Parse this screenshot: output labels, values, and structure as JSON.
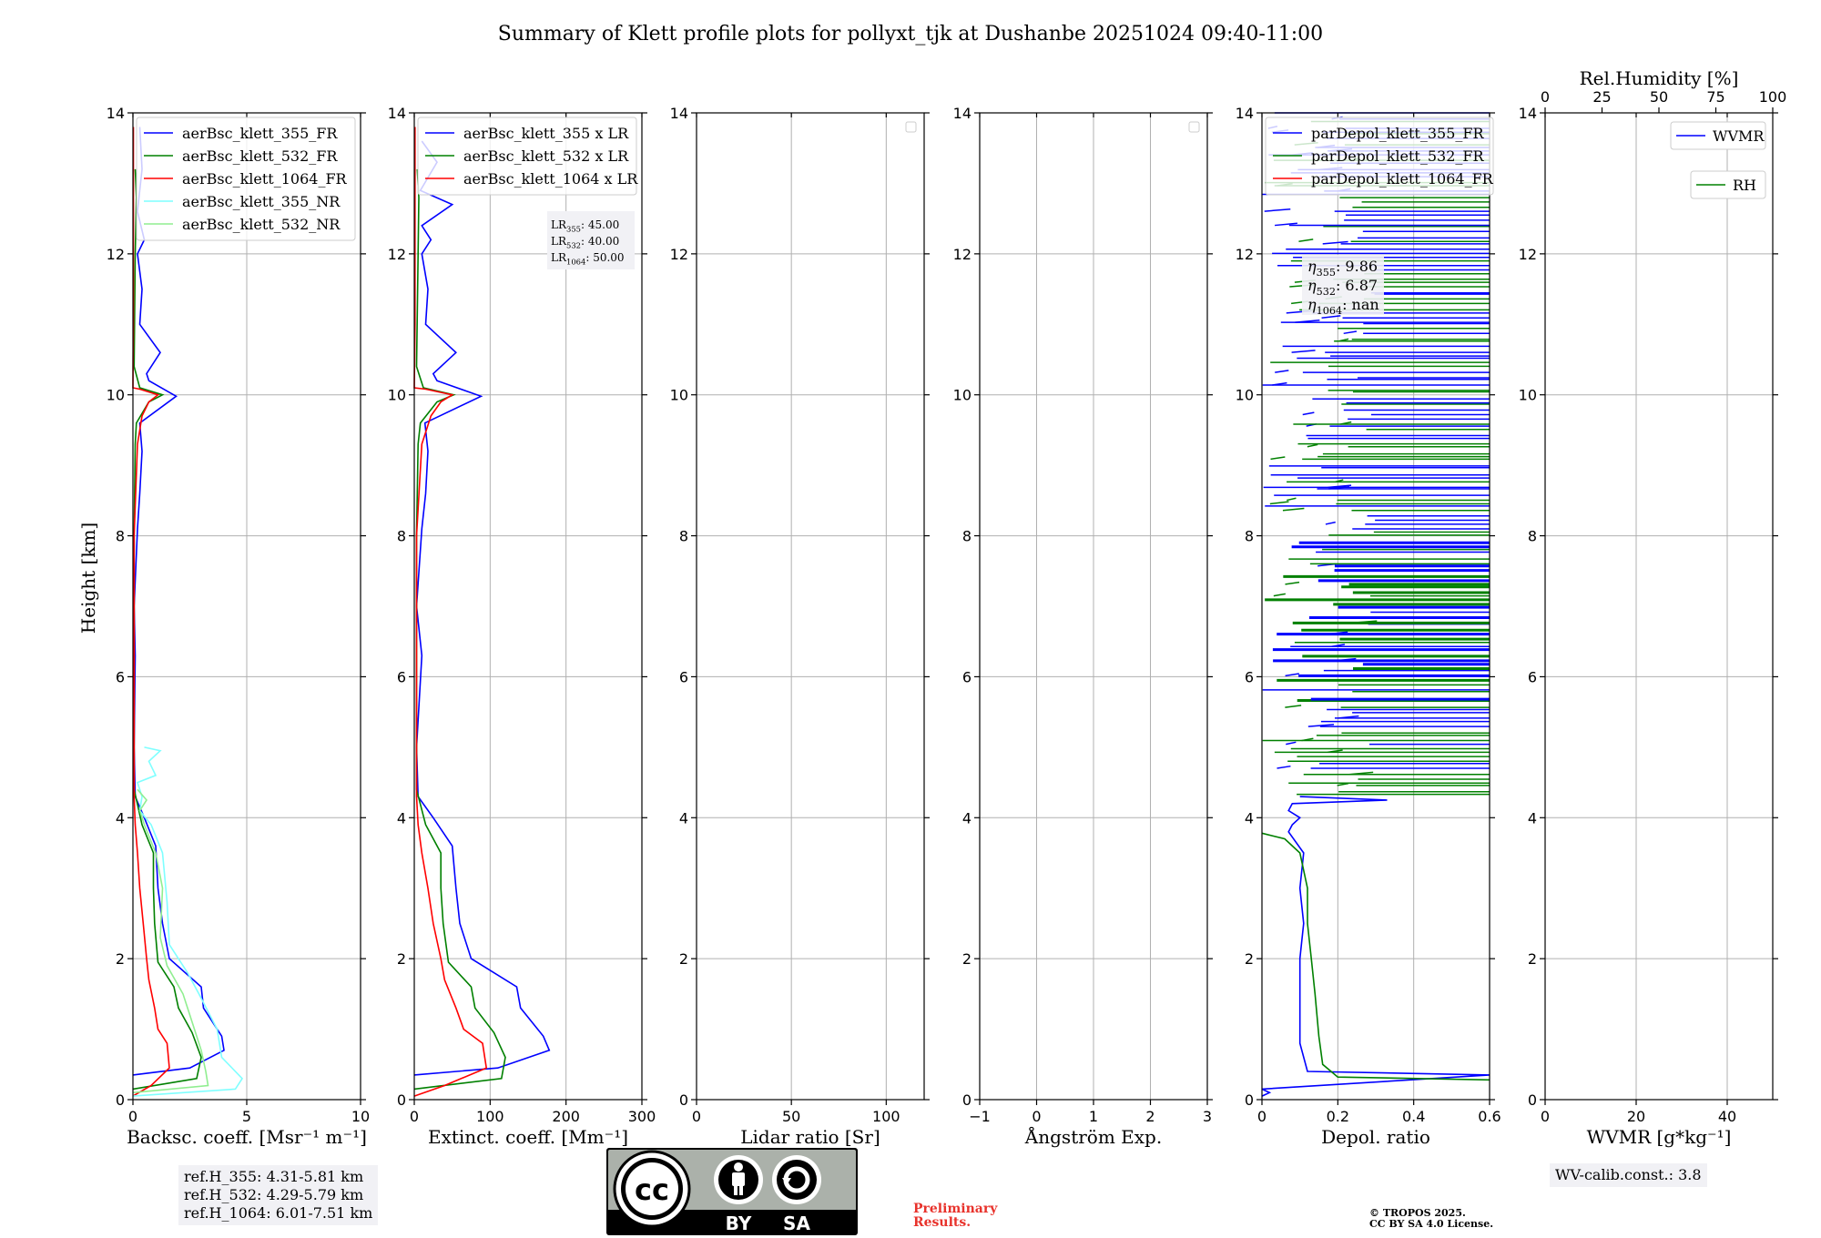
{
  "figure": {
    "title": "Summary of Klett profile plots for pollyxt_tjk at Dushanbe 20251024 09:40-11:00",
    "ylabel": "Height [km]",
    "refh": [
      "ref.H_355: 4.31-5.81 km",
      "ref.H_532: 4.29-5.79 km",
      "ref.H_1064: 6.01-7.51 km"
    ],
    "wv_calib": "WV-calib.const.: 3.8",
    "preliminary": [
      "Preliminary",
      "Results."
    ],
    "copyright": [
      "© TROPOS 2025.",
      "CC BY SA 4.0 License."
    ],
    "cc_badge": {
      "by": "BY",
      "sa": "SA"
    },
    "colors": {
      "blue": "#0000ff",
      "green": "#008000",
      "red": "#ff0000",
      "cyan": "#7fffff",
      "lightgreen": "#90ee90",
      "grid": "#b0b0b0"
    }
  },
  "chart_data": [
    {
      "id": "bsc",
      "type": "line",
      "xlabel": "Backsc. coeff. [Msr⁻¹ m⁻¹]",
      "xlim": [
        0,
        10
      ],
      "ylim": [
        0,
        14
      ],
      "xticks": [
        0,
        5,
        10
      ],
      "yticks": [
        0,
        2,
        4,
        6,
        8,
        10,
        12,
        14
      ],
      "legend": {
        "position": "upper-right",
        "entries": [
          "aerBsc_klett_355_FR",
          "aerBsc_klett_532_FR",
          "aerBsc_klett_1064_FR",
          "aerBsc_klett_355_NR",
          "aerBsc_klett_532_NR"
        ]
      },
      "series": [
        {
          "name": "aerBsc_klett_355_FR",
          "color": "blue",
          "points": [
            [
              0,
              0.35
            ],
            [
              2.5,
              0.45
            ],
            [
              4.0,
              0.7
            ],
            [
              3.9,
              0.9
            ],
            [
              3.1,
              1.3
            ],
            [
              3.0,
              1.6
            ],
            [
              1.6,
              2.0
            ],
            [
              1.3,
              2.5
            ],
            [
              1.1,
              3.0
            ],
            [
              1.0,
              3.6
            ],
            [
              0.5,
              4.0
            ],
            [
              0.1,
              4.3
            ],
            [
              0.05,
              5
            ],
            [
              0.1,
              6.3
            ],
            [
              0.05,
              7
            ],
            [
              0.2,
              8.1
            ],
            [
              0.3,
              8.6
            ],
            [
              0.4,
              9.2
            ],
            [
              0.3,
              9.6
            ],
            [
              1.9,
              9.98
            ],
            [
              0.7,
              10.2
            ],
            [
              0.6,
              10.3
            ],
            [
              1.2,
              10.6
            ],
            [
              0.3,
              11
            ],
            [
              0.4,
              11.5
            ],
            [
              0.2,
              12
            ],
            [
              0.5,
              12.2
            ],
            [
              0.2,
              12.6
            ],
            [
              0.4,
              13.2
            ],
            [
              0.3,
              13.8
            ]
          ]
        },
        {
          "name": "aerBsc_klett_532_FR",
          "color": "green",
          "points": [
            [
              0,
              0.15
            ],
            [
              2.8,
              0.3
            ],
            [
              3.0,
              0.6
            ],
            [
              2.6,
              0.95
            ],
            [
              2.0,
              1.3
            ],
            [
              1.8,
              1.6
            ],
            [
              1.1,
              1.95
            ],
            [
              0.95,
              2.5
            ],
            [
              0.9,
              3.0
            ],
            [
              0.9,
              3.5
            ],
            [
              0.4,
              3.9
            ],
            [
              0.05,
              4.4
            ],
            [
              0.05,
              8
            ],
            [
              0.1,
              9.3
            ],
            [
              0.15,
              9.6
            ],
            [
              0.7,
              9.9
            ],
            [
              1.3,
              10.0
            ],
            [
              0.3,
              10.1
            ],
            [
              0.05,
              10.4
            ],
            [
              0.1,
              12.0
            ],
            [
              0.15,
              12.8
            ],
            [
              0.1,
              13.2
            ]
          ]
        },
        {
          "name": "aerBsc_klett_1064_FR",
          "color": "red",
          "points": [
            [
              0,
              0.05
            ],
            [
              0.8,
              0.2
            ],
            [
              1.6,
              0.45
            ],
            [
              1.5,
              0.8
            ],
            [
              1.1,
              1.0
            ],
            [
              0.95,
              1.3
            ],
            [
              0.7,
              1.7
            ],
            [
              0.6,
              2.0
            ],
            [
              0.45,
              2.5
            ],
            [
              0.3,
              3.0
            ],
            [
              0.2,
              3.5
            ],
            [
              0.1,
              3.9
            ],
            [
              0.05,
              4.3
            ],
            [
              0.05,
              8
            ],
            [
              0.2,
              9.3
            ],
            [
              0.4,
              9.7
            ],
            [
              0.7,
              9.9
            ],
            [
              1.1,
              10.0
            ],
            [
              0.3,
              10.08
            ],
            [
              0,
              10.1
            ],
            [
              0.02,
              11
            ],
            [
              0.02,
              13.8
            ]
          ]
        },
        {
          "name": "aerBsc_klett_355_NR",
          "color": "cyan",
          "points": [
            [
              0,
              0.05
            ],
            [
              4.5,
              0.15
            ],
            [
              4.8,
              0.3
            ],
            [
              3.9,
              0.6
            ],
            [
              3.7,
              1.0
            ],
            [
              2.9,
              1.5
            ],
            [
              2.4,
              1.8
            ],
            [
              1.6,
              2.2
            ],
            [
              1.5,
              2.8
            ],
            [
              1.3,
              3.5
            ],
            [
              0.8,
              3.9
            ],
            [
              0.3,
              4.1
            ],
            [
              0.4,
              4.3
            ],
            [
              0.2,
              4.5
            ],
            [
              1.0,
              4.6
            ],
            [
              0.7,
              4.8
            ],
            [
              1.2,
              4.95
            ],
            [
              0.5,
              5.0
            ]
          ]
        },
        {
          "name": "aerBsc_klett_532_NR",
          "color": "lightgreen",
          "points": [
            [
              0,
              0.1
            ],
            [
              3.3,
              0.2
            ],
            [
              3.2,
              0.4
            ],
            [
              3.0,
              0.7
            ],
            [
              2.6,
              1.1
            ],
            [
              2.2,
              1.5
            ],
            [
              1.5,
              1.9
            ],
            [
              1.2,
              2.3
            ],
            [
              1.3,
              3.0
            ],
            [
              1.0,
              3.5
            ],
            [
              0.5,
              3.9
            ],
            [
              0.3,
              4.1
            ],
            [
              0.6,
              4.25
            ],
            [
              0.2,
              4.4
            ]
          ]
        }
      ]
    },
    {
      "id": "ext",
      "type": "line",
      "xlabel": "Extinct. coeff. [Mm⁻¹]",
      "xlim": [
        0,
        300
      ],
      "ylim": [
        0,
        14
      ],
      "xticks": [
        0,
        100,
        200,
        300
      ],
      "yticks": [
        0,
        2,
        4,
        6,
        8,
        10,
        12,
        14
      ],
      "legend": {
        "position": "upper-right",
        "entries": [
          "aerBsc_klett_355 x LR",
          "aerBsc_klett_532 x LR",
          "aerBsc_klett_1064 x LR"
        ]
      },
      "annotation": [
        [
          "LR",
          "355",
          ": 45.00"
        ],
        [
          "LR",
          "532",
          ": 40.00"
        ],
        [
          "LR",
          "1064",
          ": 50.00"
        ]
      ],
      "series": [
        {
          "name": "aerBsc_klett_355 x LR",
          "color": "blue",
          "points": [
            [
              0,
              0.35
            ],
            [
              110,
              0.45
            ],
            [
              178,
              0.7
            ],
            [
              170,
              0.9
            ],
            [
              140,
              1.3
            ],
            [
              135,
              1.6
            ],
            [
              75,
              2.0
            ],
            [
              60,
              2.5
            ],
            [
              55,
              3.0
            ],
            [
              50,
              3.6
            ],
            [
              25,
              4.0
            ],
            [
              5,
              4.3
            ],
            [
              3,
              5
            ],
            [
              10,
              6.3
            ],
            [
              3,
              7
            ],
            [
              10,
              8.1
            ],
            [
              15,
              8.6
            ],
            [
              18,
              9.2
            ],
            [
              14,
              9.6
            ],
            [
              88,
              9.98
            ],
            [
              30,
              10.2
            ],
            [
              25,
              10.3
            ],
            [
              55,
              10.6
            ],
            [
              15,
              11
            ],
            [
              18,
              11.5
            ],
            [
              10,
              12
            ],
            [
              22,
              12.2
            ],
            [
              10,
              12.4
            ],
            [
              50,
              12.7
            ],
            [
              8,
              12.9
            ],
            [
              30,
              13.3
            ],
            [
              10,
              13.6
            ]
          ]
        },
        {
          "name": "aerBsc_klett_532 x LR",
          "color": "green",
          "points": [
            [
              0,
              0.15
            ],
            [
              115,
              0.3
            ],
            [
              120,
              0.6
            ],
            [
              105,
              0.95
            ],
            [
              80,
              1.3
            ],
            [
              75,
              1.6
            ],
            [
              45,
              1.95
            ],
            [
              38,
              2.5
            ],
            [
              35,
              3.0
            ],
            [
              35,
              3.5
            ],
            [
              15,
              3.9
            ],
            [
              3,
              4.4
            ],
            [
              3,
              8
            ],
            [
              5,
              9.3
            ],
            [
              8,
              9.6
            ],
            [
              30,
              9.9
            ],
            [
              52,
              10.0
            ],
            [
              12,
              10.1
            ],
            [
              3,
              10.4
            ],
            [
              5,
              12.0
            ],
            [
              6,
              12.8
            ],
            [
              4,
              13.2
            ]
          ]
        },
        {
          "name": "aerBsc_klett_1064 x LR",
          "color": "red",
          "points": [
            [
              0,
              0.05
            ],
            [
              40,
              0.2
            ],
            [
              95,
              0.45
            ],
            [
              90,
              0.8
            ],
            [
              65,
              1.0
            ],
            [
              55,
              1.3
            ],
            [
              40,
              1.7
            ],
            [
              35,
              2.0
            ],
            [
              25,
              2.5
            ],
            [
              18,
              3.0
            ],
            [
              10,
              3.5
            ],
            [
              5,
              3.9
            ],
            [
              3,
              4.3
            ],
            [
              3,
              8
            ],
            [
              10,
              9.3
            ],
            [
              22,
              9.7
            ],
            [
              35,
              9.9
            ],
            [
              50,
              10.0
            ],
            [
              15,
              10.08
            ],
            [
              0,
              10.1
            ],
            [
              1,
              11
            ],
            [
              1,
              13.8
            ]
          ]
        }
      ]
    },
    {
      "id": "lr",
      "type": "line",
      "xlabel": "Lidar ratio [Sr]",
      "xlim": [
        0,
        120
      ],
      "ylim": [
        0,
        14
      ],
      "xticks": [
        0,
        50,
        100
      ],
      "yticks": [
        0,
        2,
        4,
        6,
        8,
        10,
        12,
        14
      ],
      "legend": {
        "position": "upper-right",
        "entries": []
      },
      "series": []
    },
    {
      "id": "ang",
      "type": "line",
      "xlabel": "Ångström Exp.",
      "xlim": [
        -1,
        3
      ],
      "ylim": [
        0,
        14
      ],
      "xticks": [
        -1,
        0,
        1,
        2,
        3
      ],
      "yticks": [
        0,
        2,
        4,
        6,
        8,
        10,
        12,
        14
      ],
      "legend": {
        "position": "upper-right",
        "entries": []
      },
      "series": []
    },
    {
      "id": "depol",
      "type": "line",
      "xlabel": "Depol. ratio",
      "xlim": [
        0,
        0.6
      ],
      "ylim": [
        0,
        14
      ],
      "xticks": [
        0.0,
        0.2,
        0.4,
        0.6
      ],
      "yticks": [
        0,
        2,
        4,
        6,
        8,
        10,
        12,
        14
      ],
      "legend": {
        "position": "upper-left",
        "entries": [
          "parDepol_klett_355_FR",
          "parDepol_klett_532_FR",
          "parDepol_klett_1064_FR"
        ]
      },
      "annotation": [
        [
          "η",
          "355",
          ": 9.86"
        ],
        [
          "η",
          "532",
          ": 6.87"
        ],
        [
          "η",
          "1064",
          ": nan"
        ]
      ],
      "series": [
        {
          "name": "parDepol_klett_355_FR",
          "color": "blue",
          "points": [
            [
              0.0,
              0.05
            ],
            [
              0.02,
              0.1
            ],
            [
              0.0,
              0.15
            ],
            [
              0.6,
              0.35
            ],
            [
              0.12,
              0.4
            ],
            [
              0.1,
              0.8
            ],
            [
              0.1,
              1.3
            ],
            [
              0.1,
              2.0
            ],
            [
              0.11,
              2.5
            ],
            [
              0.1,
              3.0
            ],
            [
              0.11,
              3.5
            ],
            [
              0.07,
              3.8
            ],
            [
              0.08,
              3.9
            ],
            [
              0.1,
              4.0
            ],
            [
              0.07,
              4.1
            ],
            [
              0.08,
              4.2
            ],
            [
              0.33,
              4.25
            ],
            [
              0.1,
              4.3
            ]
          ]
        },
        {
          "name": "parDepol_klett_532_FR",
          "color": "green",
          "points": [
            [
              0.6,
              0.28
            ],
            [
              0.2,
              0.32
            ],
            [
              0.16,
              0.5
            ],
            [
              0.15,
              0.9
            ],
            [
              0.14,
              1.5
            ],
            [
              0.13,
              2.0
            ],
            [
              0.12,
              2.5
            ],
            [
              0.12,
              3.0
            ],
            [
              0.1,
              3.5
            ],
            [
              0.06,
              3.7
            ],
            [
              0.0,
              3.78
            ]
          ]
        }
      ],
      "noise_region": [
        4.3,
        14
      ],
      "noise_xrange": [
        0,
        0.6
      ]
    },
    {
      "id": "wv",
      "type": "line",
      "xlabel": "WVMR [g*kg⁻¹]",
      "xlim": [
        0,
        50
      ],
      "ylim": [
        0,
        14
      ],
      "xticks": [
        0,
        20,
        40
      ],
      "yticks": [
        0,
        2,
        4,
        6,
        8,
        10,
        12,
        14
      ],
      "top_axis": {
        "label": "Rel.Humidity [%]",
        "xlim": [
          0,
          100
        ],
        "xticks": [
          0,
          25,
          50,
          75,
          100
        ]
      },
      "legend": {
        "position": "upper-right",
        "entries": [
          "WVMR",
          "RH"
        ]
      },
      "series": []
    }
  ]
}
